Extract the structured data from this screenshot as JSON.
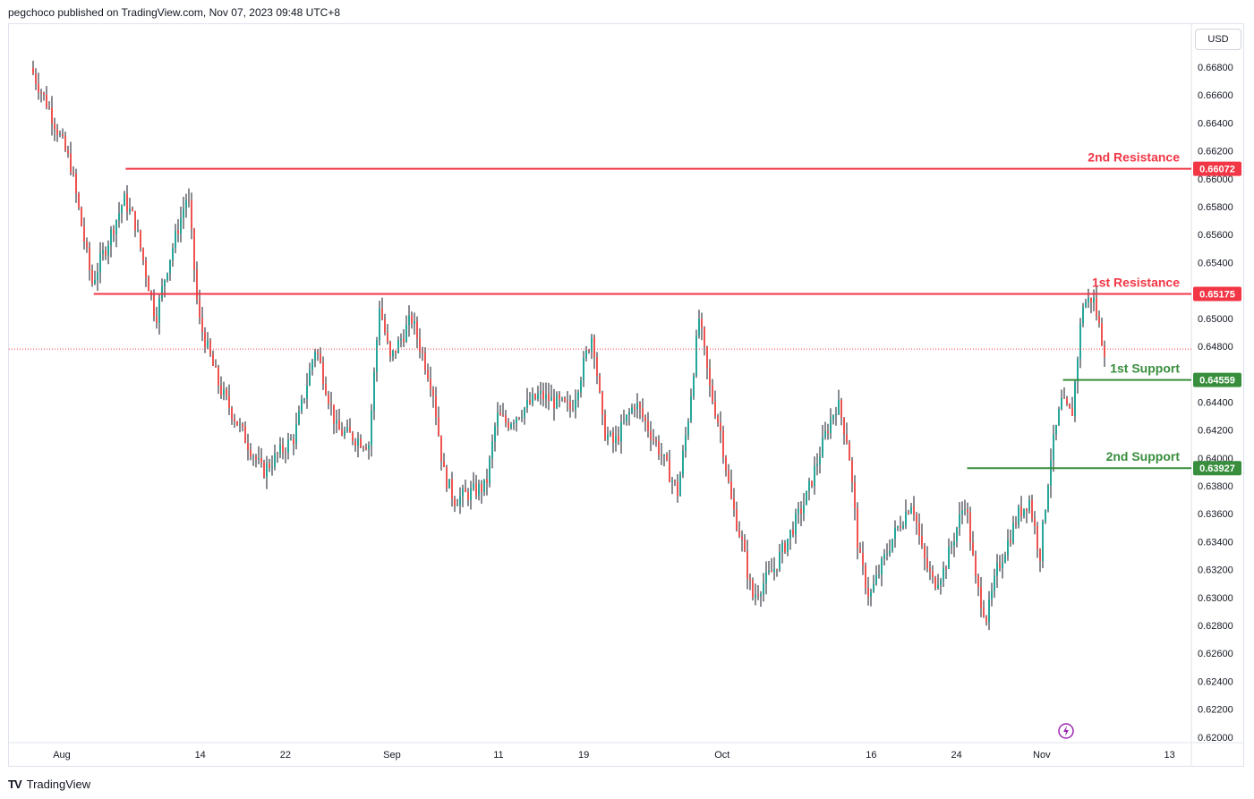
{
  "header": {
    "attribution": "pegchoco published on TradingView.com, Nov 07, 2023 09:48 UTC+8"
  },
  "price_axis": {
    "currency": "USD"
  },
  "footer": {
    "logo_icon": "tradingview-logo-icon",
    "brand": "TradingView"
  },
  "colors": {
    "up": "#26a69a",
    "down": "#ef5350",
    "resistance": "#f23645",
    "support": "#388e3c",
    "current_price_line": "#f23645",
    "grid": "#f0f3fa",
    "axis_text": "#131722"
  },
  "chart_data": {
    "type": "candlestick",
    "title": "",
    "xlabel": "",
    "ylabel": "",
    "ylim": [
      0.6196,
      0.6705
    ],
    "y_ticks": [
      "0.66800",
      "0.66600",
      "0.66400",
      "0.66200",
      "0.66000",
      "0.65800",
      "0.65600",
      "0.65400",
      "0.65000",
      "0.64800",
      "0.64400",
      "0.64200",
      "0.64000",
      "0.63800",
      "0.63600",
      "0.63400",
      "0.63200",
      "0.63000",
      "0.62800",
      "0.62600",
      "0.62400",
      "0.62200",
      "0.62000"
    ],
    "x_ticks": [
      {
        "label": "Aug",
        "date": "2023-08-01"
      },
      {
        "label": "14",
        "date": "2023-08-14"
      },
      {
        "label": "22",
        "date": "2023-08-22"
      },
      {
        "label": "Sep",
        "date": "2023-09-01"
      },
      {
        "label": "11",
        "date": "2023-09-11"
      },
      {
        "label": "19",
        "date": "2023-09-19"
      },
      {
        "label": "Oct",
        "date": "2023-10-02"
      },
      {
        "label": "16",
        "date": "2023-10-16"
      },
      {
        "label": "24",
        "date": "2023-10-24"
      },
      {
        "label": "Nov",
        "date": "2023-11-01"
      },
      {
        "label": "13",
        "date": "2023-11-13"
      }
    ],
    "levels": [
      {
        "label": "2nd Resistance",
        "value": 0.66072,
        "value_text": "0.66072",
        "kind": "resistance",
        "start_date": "2023-08-07"
      },
      {
        "label": "1st Resistance",
        "value": 0.65175,
        "value_text": "0.65175",
        "kind": "resistance",
        "start_date": "2023-08-04"
      },
      {
        "label": "1st Support",
        "value": 0.64559,
        "value_text": "0.64559",
        "kind": "support",
        "start_date": "2023-11-03"
      },
      {
        "label": "2nd Support",
        "value": 0.63927,
        "value_text": "0.63927",
        "kind": "support",
        "start_date": "2023-10-25"
      }
    ],
    "current_price": 0.6478,
    "price_anchors": [
      {
        "date": "2023-07-28",
        "price": 0.67
      },
      {
        "date": "2023-07-31",
        "price": 0.665
      },
      {
        "date": "2023-08-02",
        "price": 0.661
      },
      {
        "date": "2023-08-04",
        "price": 0.6525
      },
      {
        "date": "2023-08-07",
        "price": 0.6585
      },
      {
        "date": "2023-08-08",
        "price": 0.657
      },
      {
        "date": "2023-08-10",
        "price": 0.65
      },
      {
        "date": "2023-08-11",
        "price": 0.6535
      },
      {
        "date": "2023-08-13",
        "price": 0.659
      },
      {
        "date": "2023-08-14",
        "price": 0.65
      },
      {
        "date": "2023-08-16",
        "price": 0.645
      },
      {
        "date": "2023-08-18",
        "price": 0.642
      },
      {
        "date": "2023-08-20",
        "price": 0.639
      },
      {
        "date": "2023-08-23",
        "price": 0.6415
      },
      {
        "date": "2023-08-25",
        "price": 0.648
      },
      {
        "date": "2023-08-27",
        "price": 0.642
      },
      {
        "date": "2023-08-30",
        "price": 0.641
      },
      {
        "date": "2023-08-31",
        "price": 0.651
      },
      {
        "date": "2023-09-01",
        "price": 0.647
      },
      {
        "date": "2023-09-03",
        "price": 0.65
      },
      {
        "date": "2023-09-05",
        "price": 0.645
      },
      {
        "date": "2023-09-06",
        "price": 0.639
      },
      {
        "date": "2023-09-07",
        "price": 0.637
      },
      {
        "date": "2023-09-10",
        "price": 0.638
      },
      {
        "date": "2023-09-11",
        "price": 0.643
      },
      {
        "date": "2023-09-12",
        "price": 0.6425
      },
      {
        "date": "2023-09-15",
        "price": 0.6445
      },
      {
        "date": "2023-09-18",
        "price": 0.6435
      },
      {
        "date": "2023-09-20",
        "price": 0.649
      },
      {
        "date": "2023-09-21",
        "price": 0.642
      },
      {
        "date": "2023-09-22",
        "price": 0.641
      },
      {
        "date": "2023-09-24",
        "price": 0.644
      },
      {
        "date": "2023-09-26",
        "price": 0.641
      },
      {
        "date": "2023-09-28",
        "price": 0.6375
      },
      {
        "date": "2023-09-29",
        "price": 0.643
      },
      {
        "date": "2023-09-30",
        "price": 0.65
      },
      {
        "date": "2023-10-01",
        "price": 0.645
      },
      {
        "date": "2023-10-02",
        "price": 0.642
      },
      {
        "date": "2023-10-03",
        "price": 0.637
      },
      {
        "date": "2023-10-04",
        "price": 0.634
      },
      {
        "date": "2023-10-05",
        "price": 0.63
      },
      {
        "date": "2023-10-07",
        "price": 0.632
      },
      {
        "date": "2023-10-10",
        "price": 0.637
      },
      {
        "date": "2023-10-12",
        "price": 0.642
      },
      {
        "date": "2023-10-13",
        "price": 0.644
      },
      {
        "date": "2023-10-14",
        "price": 0.641
      },
      {
        "date": "2023-10-15",
        "price": 0.633
      },
      {
        "date": "2023-10-16",
        "price": 0.63
      },
      {
        "date": "2023-10-18",
        "price": 0.634
      },
      {
        "date": "2023-10-20",
        "price": 0.637
      },
      {
        "date": "2023-10-21",
        "price": 0.633
      },
      {
        "date": "2023-10-22",
        "price": 0.631
      },
      {
        "date": "2023-10-23",
        "price": 0.632
      },
      {
        "date": "2023-10-24",
        "price": 0.6345
      },
      {
        "date": "2023-10-25",
        "price": 0.637
      },
      {
        "date": "2023-10-26",
        "price": 0.631
      },
      {
        "date": "2023-10-27",
        "price": 0.6285
      },
      {
        "date": "2023-10-28",
        "price": 0.632
      },
      {
        "date": "2023-10-30",
        "price": 0.636
      },
      {
        "date": "2023-10-31",
        "price": 0.637
      },
      {
        "date": "2023-11-01",
        "price": 0.633
      },
      {
        "date": "2023-11-02",
        "price": 0.64
      },
      {
        "date": "2023-11-03",
        "price": 0.644
      },
      {
        "date": "2023-11-04",
        "price": 0.643
      },
      {
        "date": "2023-11-05",
        "price": 0.651
      },
      {
        "date": "2023-11-06",
        "price": 0.6515
      },
      {
        "date": "2023-11-07",
        "price": 0.6478
      }
    ]
  }
}
